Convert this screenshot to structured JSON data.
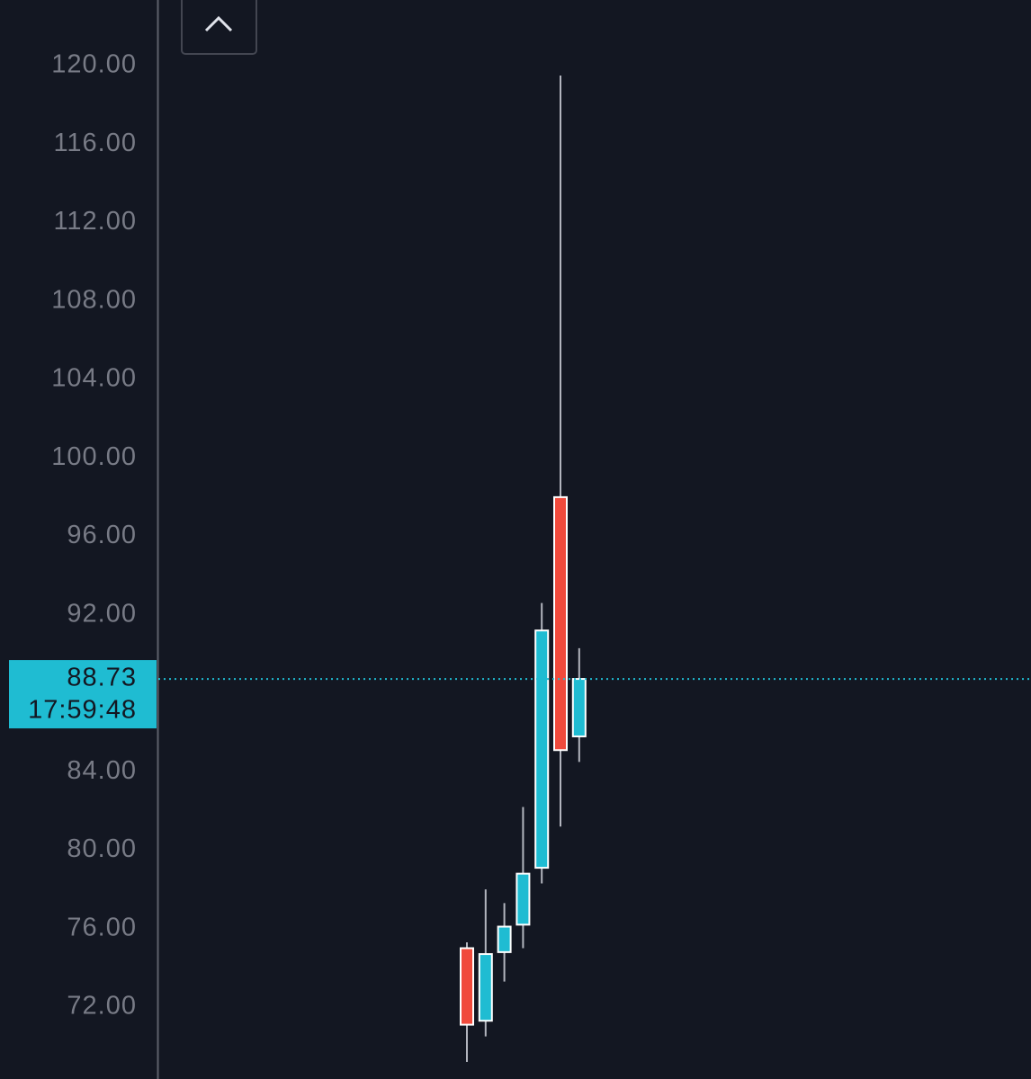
{
  "chart_data": {
    "type": "candlestick",
    "categories": [
      null,
      null,
      null,
      null,
      null,
      null,
      null
    ],
    "open": [
      75.0,
      71.3,
      74.8,
      76.2,
      79.1,
      98.0,
      85.8
    ],
    "high": [
      75.3,
      78.0,
      77.3,
      82.2,
      92.6,
      119.5,
      90.3
    ],
    "low": [
      69.2,
      70.5,
      73.3,
      75.0,
      78.3,
      81.2,
      84.5
    ],
    "close": [
      71.1,
      74.7,
      76.1,
      78.8,
      91.2,
      85.1,
      88.73
    ],
    "up_color": "#1fbcd2",
    "down_color": "#f04a3c",
    "ylim": [
      68.33,
      123.35
    ],
    "yticks": [
      {
        "value": 72,
        "label": "72.00"
      },
      {
        "value": 76,
        "label": "76.00"
      },
      {
        "value": 80,
        "label": "80.00"
      },
      {
        "value": 84,
        "label": "84.00"
      },
      {
        "value": 92,
        "label": "92.00"
      },
      {
        "value": 96,
        "label": "96.00"
      },
      {
        "value": 100,
        "label": "100.00"
      },
      {
        "value": 104,
        "label": "104.00"
      },
      {
        "value": 108,
        "label": "108.00"
      },
      {
        "value": 112,
        "label": "112.00"
      },
      {
        "value": 116,
        "label": "116.00"
      },
      {
        "value": 120,
        "label": "120.00"
      }
    ],
    "grid": false,
    "last_price": 88.73,
    "countdown": "17:59:48"
  }
}
